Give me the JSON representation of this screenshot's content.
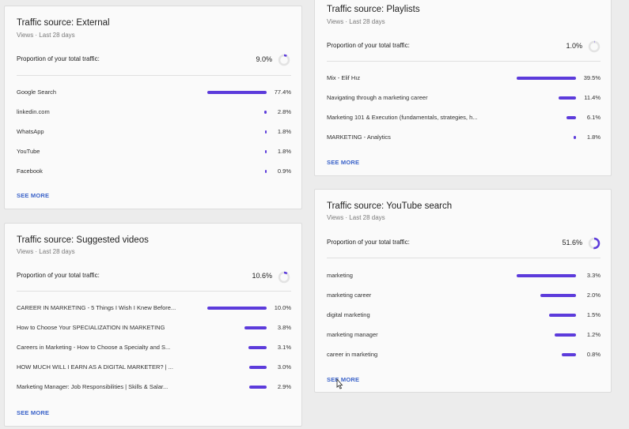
{
  "colors": {
    "bar": "#5c3bdb",
    "link": "#3a62c9",
    "donut_track": "#e3e3e3"
  },
  "common": {
    "subtitle": "Views · Last 28 days",
    "proportion_label": "Proportion of your total traffic:",
    "see_more": "SEE MORE"
  },
  "external": {
    "title": "Traffic source: External",
    "proportion": "9.0%",
    "proportion_fraction": 0.09,
    "rows": [
      {
        "label": "Google Search",
        "value": "77.4%",
        "fraction": 0.774
      },
      {
        "label": "linkedin.com",
        "value": "2.8%",
        "fraction": 0.028
      },
      {
        "label": "WhatsApp",
        "value": "1.8%",
        "fraction": 0.018
      },
      {
        "label": "YouTube",
        "value": "1.8%",
        "fraction": 0.018
      },
      {
        "label": "Facebook",
        "value": "0.9%",
        "fraction": 0.009
      }
    ]
  },
  "suggested": {
    "title": "Traffic source: Suggested videos",
    "proportion": "10.6%",
    "proportion_fraction": 0.106,
    "rows": [
      {
        "label": "CAREER IN MARKETING - 5 Things I Wish I Knew Before...",
        "value": "10.0%",
        "fraction": 0.1
      },
      {
        "label": "How to Choose Your SPECIALIZATION IN MARKETING",
        "value": "3.8%",
        "fraction": 0.038
      },
      {
        "label": "Careers in Marketing - How to Choose a Specialty and S...",
        "value": "3.1%",
        "fraction": 0.031
      },
      {
        "label": "HOW MUCH WILL I EARN AS A DIGITAL MARKETER? | ...",
        "value": "3.0%",
        "fraction": 0.03
      },
      {
        "label": "Marketing Manager: Job Responsibilities | Skills & Salar...",
        "value": "2.9%",
        "fraction": 0.029
      }
    ]
  },
  "playlists": {
    "title": "Traffic source: Playlists",
    "proportion": "1.0%",
    "proportion_fraction": 0.01,
    "rows": [
      {
        "label": "Mix - Elif Hız",
        "value": "39.5%",
        "fraction": 0.395
      },
      {
        "label": "Navigating through a marketing career",
        "value": "11.4%",
        "fraction": 0.114
      },
      {
        "label": "Marketing 101 & Execution (fundamentals, strategies, h...",
        "value": "6.1%",
        "fraction": 0.061
      },
      {
        "label": "MARKETING - Analytics",
        "value": "1.8%",
        "fraction": 0.018
      }
    ]
  },
  "ytsearch": {
    "title": "Traffic source: YouTube search",
    "proportion": "51.6%",
    "proportion_fraction": 0.516,
    "rows": [
      {
        "label": "marketing",
        "value": "3.3%",
        "fraction": 0.033
      },
      {
        "label": "marketing career",
        "value": "2.0%",
        "fraction": 0.02
      },
      {
        "label": "digital marketing",
        "value": "1.5%",
        "fraction": 0.015
      },
      {
        "label": "marketing manager",
        "value": "1.2%",
        "fraction": 0.012
      },
      {
        "label": "career in marketing",
        "value": "0.8%",
        "fraction": 0.008
      }
    ]
  }
}
